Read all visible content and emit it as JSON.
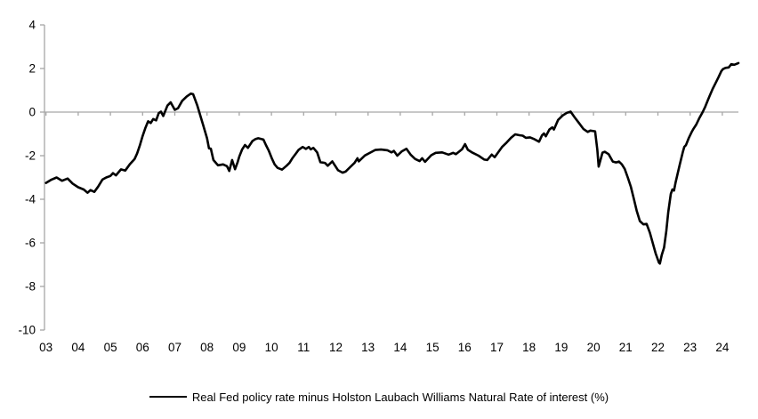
{
  "chart_data": {
    "type": "line",
    "title": "",
    "xlabel": "",
    "ylabel": "",
    "x_tick_labels": [
      "03",
      "04",
      "05",
      "06",
      "07",
      "08",
      "09",
      "10",
      "11",
      "12",
      "13",
      "14",
      "15",
      "16",
      "17",
      "18",
      "19",
      "20",
      "21",
      "22",
      "23",
      "24"
    ],
    "y_tick_labels": [
      "4",
      "2",
      "0",
      "-2",
      "-4",
      "-6",
      "-8",
      "-10"
    ],
    "y_tick_values": [
      4,
      2,
      0,
      -2,
      -4,
      -6,
      -8,
      -10
    ],
    "ylim": [
      -10,
      4
    ],
    "x_start_year": 2003.0,
    "x_end_year": 2024.5,
    "grid": "zero-line-only",
    "legend_position": "bottom",
    "series": [
      {
        "name": "Real Fed policy rate minus Holston Laubach Williams Natural Rate of interest (%)",
        "color": "#000000",
        "points": [
          [
            2003.0,
            -3.25
          ],
          [
            2003.17,
            -3.1
          ],
          [
            2003.33,
            -3.0
          ],
          [
            2003.5,
            -3.15
          ],
          [
            2003.67,
            -3.05
          ],
          [
            2003.83,
            -3.28
          ],
          [
            2004.0,
            -3.45
          ],
          [
            2004.17,
            -3.55
          ],
          [
            2004.29,
            -3.7
          ],
          [
            2004.38,
            -3.58
          ],
          [
            2004.5,
            -3.66
          ],
          [
            2004.62,
            -3.42
          ],
          [
            2004.75,
            -3.1
          ],
          [
            2004.87,
            -3.0
          ],
          [
            2005.0,
            -2.93
          ],
          [
            2005.08,
            -2.8
          ],
          [
            2005.17,
            -2.9
          ],
          [
            2005.33,
            -2.63
          ],
          [
            2005.46,
            -2.68
          ],
          [
            2005.6,
            -2.4
          ],
          [
            2005.75,
            -2.15
          ],
          [
            2005.83,
            -1.9
          ],
          [
            2005.92,
            -1.5
          ],
          [
            2006.0,
            -1.1
          ],
          [
            2006.08,
            -0.75
          ],
          [
            2006.17,
            -0.42
          ],
          [
            2006.25,
            -0.5
          ],
          [
            2006.33,
            -0.32
          ],
          [
            2006.42,
            -0.38
          ],
          [
            2006.5,
            -0.05
          ],
          [
            2006.57,
            0.02
          ],
          [
            2006.64,
            -0.18
          ],
          [
            2006.77,
            0.3
          ],
          [
            2006.87,
            0.45
          ],
          [
            2007.0,
            0.1
          ],
          [
            2007.1,
            0.18
          ],
          [
            2007.23,
            0.52
          ],
          [
            2007.37,
            0.72
          ],
          [
            2007.5,
            0.85
          ],
          [
            2007.57,
            0.82
          ],
          [
            2007.7,
            0.3
          ],
          [
            2007.79,
            -0.15
          ],
          [
            2007.88,
            -0.6
          ],
          [
            2008.0,
            -1.2
          ],
          [
            2008.06,
            -1.66
          ],
          [
            2008.12,
            -1.68
          ],
          [
            2008.2,
            -2.2
          ],
          [
            2008.34,
            -2.44
          ],
          [
            2008.5,
            -2.4
          ],
          [
            2008.62,
            -2.48
          ],
          [
            2008.69,
            -2.7
          ],
          [
            2008.78,
            -2.2
          ],
          [
            2008.87,
            -2.62
          ],
          [
            2008.95,
            -2.3
          ],
          [
            2009.0,
            -2.05
          ],
          [
            2009.09,
            -1.71
          ],
          [
            2009.18,
            -1.51
          ],
          [
            2009.27,
            -1.64
          ],
          [
            2009.41,
            -1.33
          ],
          [
            2009.5,
            -1.24
          ],
          [
            2009.59,
            -1.2
          ],
          [
            2009.75,
            -1.26
          ],
          [
            2009.83,
            -1.51
          ],
          [
            2009.92,
            -1.78
          ],
          [
            2010.01,
            -2.12
          ],
          [
            2010.1,
            -2.4
          ],
          [
            2010.19,
            -2.56
          ],
          [
            2010.33,
            -2.64
          ],
          [
            2010.47,
            -2.46
          ],
          [
            2010.56,
            -2.33
          ],
          [
            2010.65,
            -2.12
          ],
          [
            2010.75,
            -1.92
          ],
          [
            2010.84,
            -1.74
          ],
          [
            2010.97,
            -1.6
          ],
          [
            2011.07,
            -1.69
          ],
          [
            2011.16,
            -1.6
          ],
          [
            2011.22,
            -1.71
          ],
          [
            2011.3,
            -1.64
          ],
          [
            2011.42,
            -1.85
          ],
          [
            2011.52,
            -2.3
          ],
          [
            2011.66,
            -2.33
          ],
          [
            2011.75,
            -2.46
          ],
          [
            2011.89,
            -2.26
          ],
          [
            2012.07,
            -2.67
          ],
          [
            2012.21,
            -2.78
          ],
          [
            2012.3,
            -2.73
          ],
          [
            2012.44,
            -2.53
          ],
          [
            2012.58,
            -2.33
          ],
          [
            2012.67,
            -2.12
          ],
          [
            2012.71,
            -2.26
          ],
          [
            2012.9,
            -1.99
          ],
          [
            2013.04,
            -1.88
          ],
          [
            2013.22,
            -1.74
          ],
          [
            2013.4,
            -1.72
          ],
          [
            2013.6,
            -1.75
          ],
          [
            2013.73,
            -1.85
          ],
          [
            2013.8,
            -1.78
          ],
          [
            2013.91,
            -2.0
          ],
          [
            2014.05,
            -1.8
          ],
          [
            2014.19,
            -1.68
          ],
          [
            2014.32,
            -1.95
          ],
          [
            2014.46,
            -2.15
          ],
          [
            2014.6,
            -2.25
          ],
          [
            2014.68,
            -2.12
          ],
          [
            2014.77,
            -2.28
          ],
          [
            2014.96,
            -1.98
          ],
          [
            2015.1,
            -1.87
          ],
          [
            2015.3,
            -1.85
          ],
          [
            2015.5,
            -1.95
          ],
          [
            2015.64,
            -1.87
          ],
          [
            2015.73,
            -1.93
          ],
          [
            2015.92,
            -1.7
          ],
          [
            2016.01,
            -1.47
          ],
          [
            2016.1,
            -1.73
          ],
          [
            2016.24,
            -1.86
          ],
          [
            2016.43,
            -2.0
          ],
          [
            2016.61,
            -2.18
          ],
          [
            2016.7,
            -2.2
          ],
          [
            2016.84,
            -1.95
          ],
          [
            2016.93,
            -2.07
          ],
          [
            2017.16,
            -1.6
          ],
          [
            2017.3,
            -1.4
          ],
          [
            2017.44,
            -1.18
          ],
          [
            2017.57,
            -1.02
          ],
          [
            2017.7,
            -1.06
          ],
          [
            2017.8,
            -1.08
          ],
          [
            2017.9,
            -1.18
          ],
          [
            2018.03,
            -1.16
          ],
          [
            2018.17,
            -1.25
          ],
          [
            2018.31,
            -1.36
          ],
          [
            2018.4,
            -1.07
          ],
          [
            2018.46,
            -0.98
          ],
          [
            2018.52,
            -1.11
          ],
          [
            2018.63,
            -0.8
          ],
          [
            2018.72,
            -0.7
          ],
          [
            2018.77,
            -0.8
          ],
          [
            2018.9,
            -0.36
          ],
          [
            2019.04,
            -0.16
          ],
          [
            2019.18,
            -0.03
          ],
          [
            2019.29,
            0.02
          ],
          [
            2019.41,
            -0.23
          ],
          [
            2019.55,
            -0.5
          ],
          [
            2019.69,
            -0.78
          ],
          [
            2019.82,
            -0.91
          ],
          [
            2019.9,
            -0.85
          ],
          [
            2020.05,
            -0.88
          ],
          [
            2020.12,
            -1.73
          ],
          [
            2020.16,
            -2.5
          ],
          [
            2020.28,
            -1.86
          ],
          [
            2020.35,
            -1.82
          ],
          [
            2020.47,
            -1.93
          ],
          [
            2020.6,
            -2.27
          ],
          [
            2020.7,
            -2.31
          ],
          [
            2020.79,
            -2.27
          ],
          [
            2020.88,
            -2.4
          ],
          [
            2020.97,
            -2.61
          ],
          [
            2021.07,
            -3.02
          ],
          [
            2021.16,
            -3.43
          ],
          [
            2021.25,
            -3.97
          ],
          [
            2021.34,
            -4.52
          ],
          [
            2021.44,
            -5.0
          ],
          [
            2021.55,
            -5.15
          ],
          [
            2021.65,
            -5.13
          ],
          [
            2021.75,
            -5.54
          ],
          [
            2021.84,
            -6.01
          ],
          [
            2021.93,
            -6.49
          ],
          [
            2022.03,
            -6.9
          ],
          [
            2022.06,
            -6.95
          ],
          [
            2022.12,
            -6.56
          ],
          [
            2022.19,
            -6.22
          ],
          [
            2022.26,
            -5.47
          ],
          [
            2022.32,
            -4.6
          ],
          [
            2022.4,
            -3.75
          ],
          [
            2022.45,
            -3.55
          ],
          [
            2022.5,
            -3.6
          ],
          [
            2022.55,
            -3.22
          ],
          [
            2022.68,
            -2.4
          ],
          [
            2022.78,
            -1.8
          ],
          [
            2022.82,
            -1.59
          ],
          [
            2022.87,
            -1.52
          ],
          [
            2022.96,
            -1.18
          ],
          [
            2023.05,
            -0.91
          ],
          [
            2023.1,
            -0.78
          ],
          [
            2023.19,
            -0.57
          ],
          [
            2023.28,
            -0.3
          ],
          [
            2023.39,
            0.0
          ],
          [
            2023.47,
            0.25
          ],
          [
            2023.56,
            0.58
          ],
          [
            2023.6,
            0.72
          ],
          [
            2023.7,
            1.06
          ],
          [
            2023.79,
            1.33
          ],
          [
            2023.88,
            1.6
          ],
          [
            2023.97,
            1.88
          ],
          [
            2024.02,
            1.97
          ],
          [
            2024.1,
            2.03
          ],
          [
            2024.2,
            2.05
          ],
          [
            2024.28,
            2.2
          ],
          [
            2024.37,
            2.17
          ],
          [
            2024.5,
            2.25
          ]
        ]
      }
    ]
  },
  "legend": {
    "label": "Real Fed policy rate minus Holston Laubach Williams Natural Rate of interest (%)"
  },
  "colors": {
    "background": "#ffffff",
    "axis": "#a6a6a6",
    "line": "#000000",
    "text": "#000000"
  }
}
